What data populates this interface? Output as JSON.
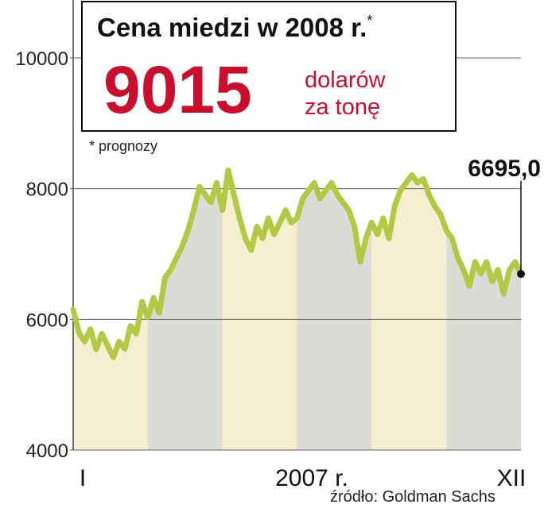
{
  "headline": {
    "text": "Cena miedzi w",
    "bold": "2008 r.",
    "mark": "*"
  },
  "forecast": {
    "value": "9015",
    "unit_line1": "dolarów",
    "unit_line2": "za tonę"
  },
  "footnote": "* prognozy",
  "source": "źródło: Goldman Sachs",
  "chart_data": {
    "type": "line",
    "x_label": "2007 r.",
    "categories": [
      "I",
      null,
      null,
      null,
      null,
      null,
      null,
      null,
      null,
      null,
      null,
      null,
      null,
      null,
      null,
      null,
      null,
      null,
      null,
      null,
      null,
      null,
      null,
      null,
      null,
      null,
      null,
      null,
      null,
      null,
      null,
      null,
      null,
      null,
      null,
      null,
      null,
      null,
      null,
      null,
      null,
      null,
      null,
      null,
      null,
      null,
      null,
      null,
      null,
      null,
      null,
      null,
      null,
      null,
      null,
      null,
      null,
      null,
      null,
      null,
      null,
      null,
      null,
      null,
      null,
      null,
      null,
      null,
      null,
      null,
      null,
      null,
      null,
      null,
      null,
      null,
      null,
      null,
      "XII"
    ],
    "values": [
      6150,
      5800,
      5660,
      5850,
      5540,
      5780,
      5600,
      5420,
      5660,
      5550,
      5900,
      5780,
      6270,
      6030,
      6330,
      6100,
      6640,
      6760,
      6940,
      7120,
      7360,
      7670,
      8030,
      7910,
      7790,
      8090,
      7670,
      8280,
      7910,
      7550,
      7240,
      7060,
      7420,
      7240,
      7550,
      7300,
      7480,
      7670,
      7480,
      7550,
      7850,
      7970,
      8090,
      7850,
      7970,
      8090,
      7910,
      7790,
      7670,
      7420,
      6880,
      7240,
      7480,
      7300,
      7550,
      7240,
      7730,
      7970,
      8090,
      8210,
      8090,
      8150,
      7910,
      7730,
      7610,
      7360,
      7240,
      6940,
      6760,
      6510,
      6880,
      6700,
      6880,
      6580,
      6760,
      6390,
      6760,
      6880,
      6695
    ],
    "value_labels": [
      null,
      null,
      null,
      null,
      null,
      null,
      null,
      null,
      null,
      null,
      null,
      null,
      null,
      null,
      null,
      null,
      null,
      null,
      null,
      null,
      null,
      null,
      null,
      null,
      null,
      null,
      null,
      null,
      null,
      null,
      null,
      null,
      null,
      null,
      null,
      null,
      null,
      null,
      null,
      null,
      null,
      null,
      null,
      null,
      null,
      null,
      null,
      null,
      null,
      null,
      null,
      null,
      null,
      null,
      null,
      null,
      null,
      null,
      null,
      null,
      null,
      null,
      null,
      null,
      null,
      null,
      null,
      null,
      null,
      null,
      null,
      null,
      null,
      null,
      null,
      null,
      null,
      null,
      "6695,0"
    ],
    "color": "#b3c845",
    "ylim": [
      4000,
      10000
    ],
    "yticks": [
      4000,
      6000,
      8000,
      10000
    ],
    "grid": true
  }
}
